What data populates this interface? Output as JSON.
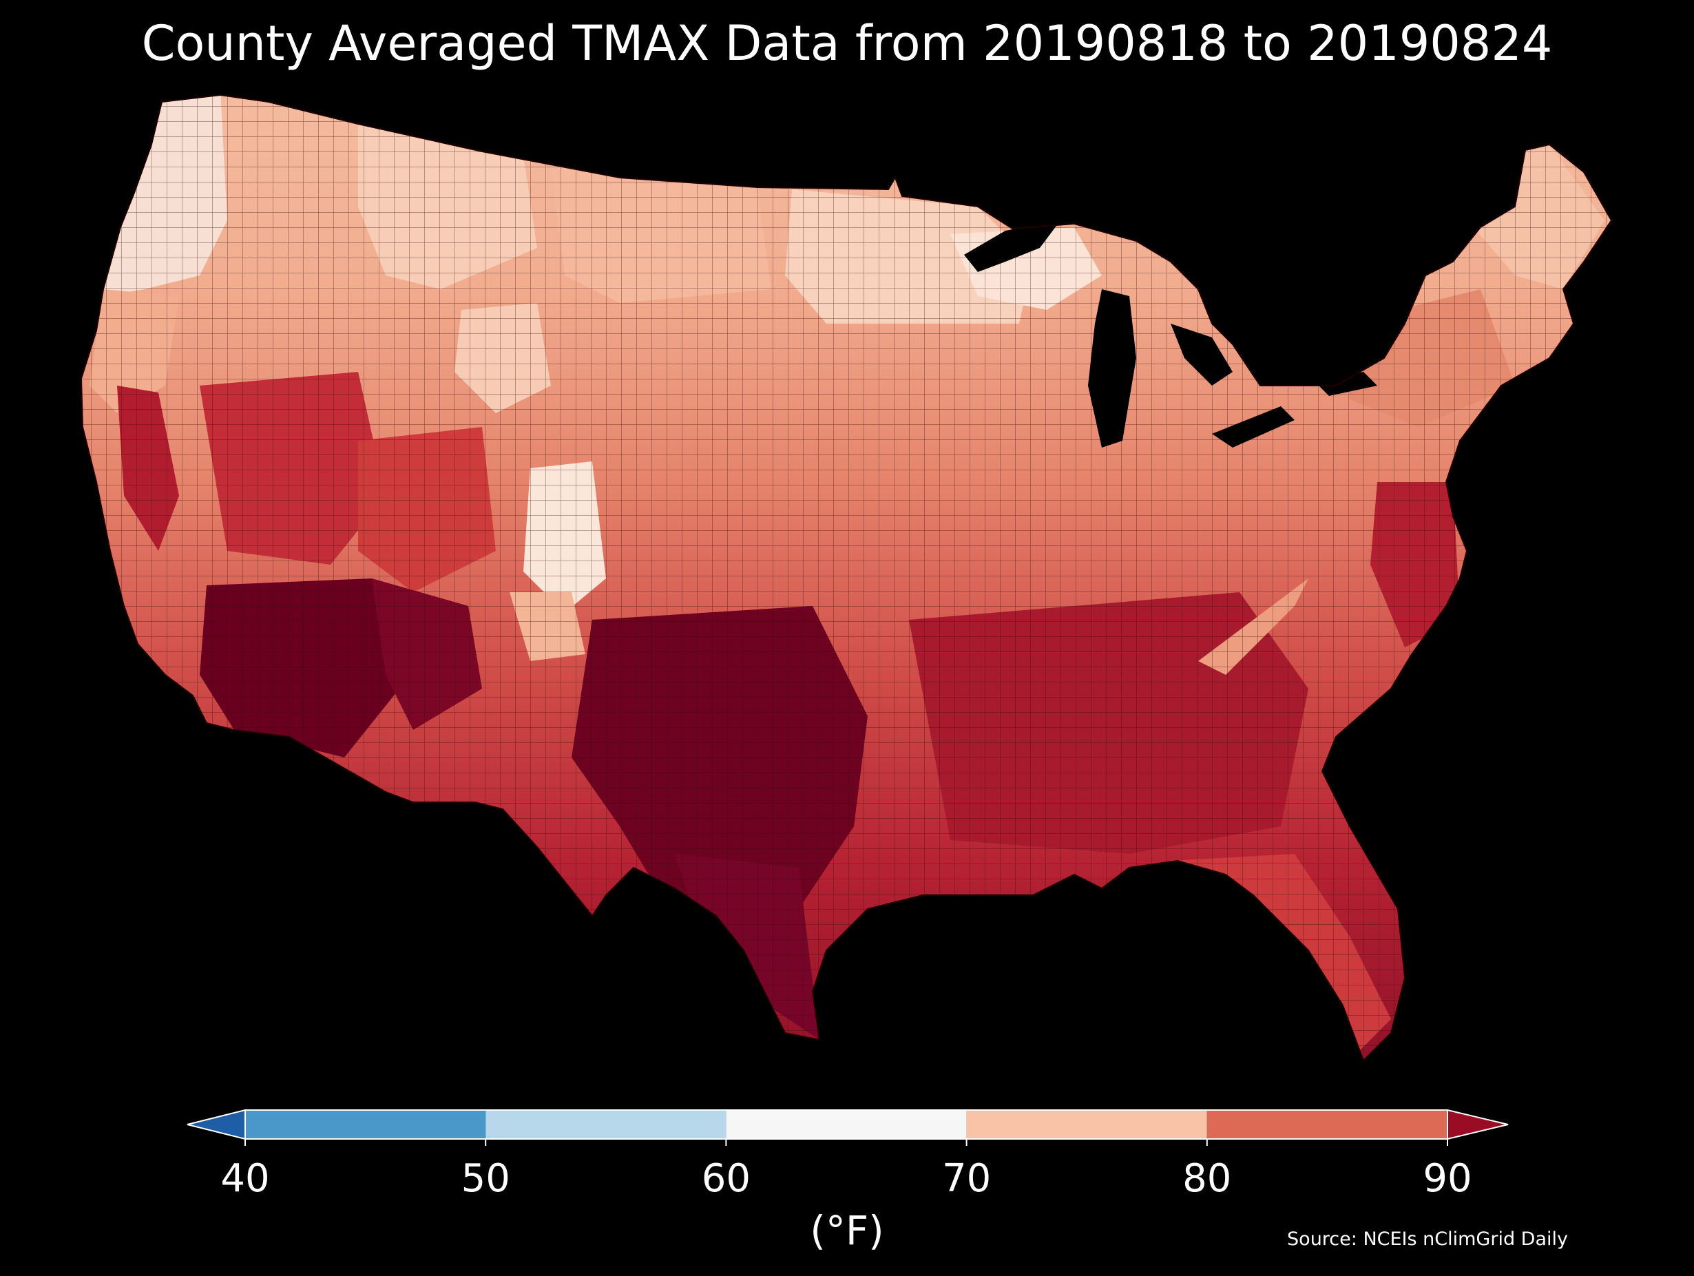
{
  "title": "County Averaged TMAX Data from 20190818 to 20190824",
  "source": "Source: NCEIs nClimGrid Daily",
  "colorbar": {
    "unit_label": "(°F)",
    "ticks": [
      "40",
      "50",
      "60",
      "70",
      "80",
      "90"
    ],
    "bins": [
      {
        "from": 40,
        "to": 50,
        "color": "#4a98c9"
      },
      {
        "from": 50,
        "to": 60,
        "color": "#b7d7ea"
      },
      {
        "from": 60,
        "to": 70,
        "color": "#f6f6f6"
      },
      {
        "from": 70,
        "to": 80,
        "color": "#f9c3a7"
      },
      {
        "from": 80,
        "to": 90,
        "color": "#dc6a55"
      }
    ],
    "under_color": "#1e5ea6",
    "over_color": "#990c24",
    "extend": "both"
  },
  "map": {
    "region": "contiguous-united-states",
    "unit": "county",
    "background_color": "#000000",
    "palette": {
      "pale": "#fbe6da",
      "light": "#f6b497",
      "mid": "#e5836b",
      "red": "#cf3f3c",
      "deep": "#a81a2d",
      "darkest": "#6a0020"
    }
  }
}
